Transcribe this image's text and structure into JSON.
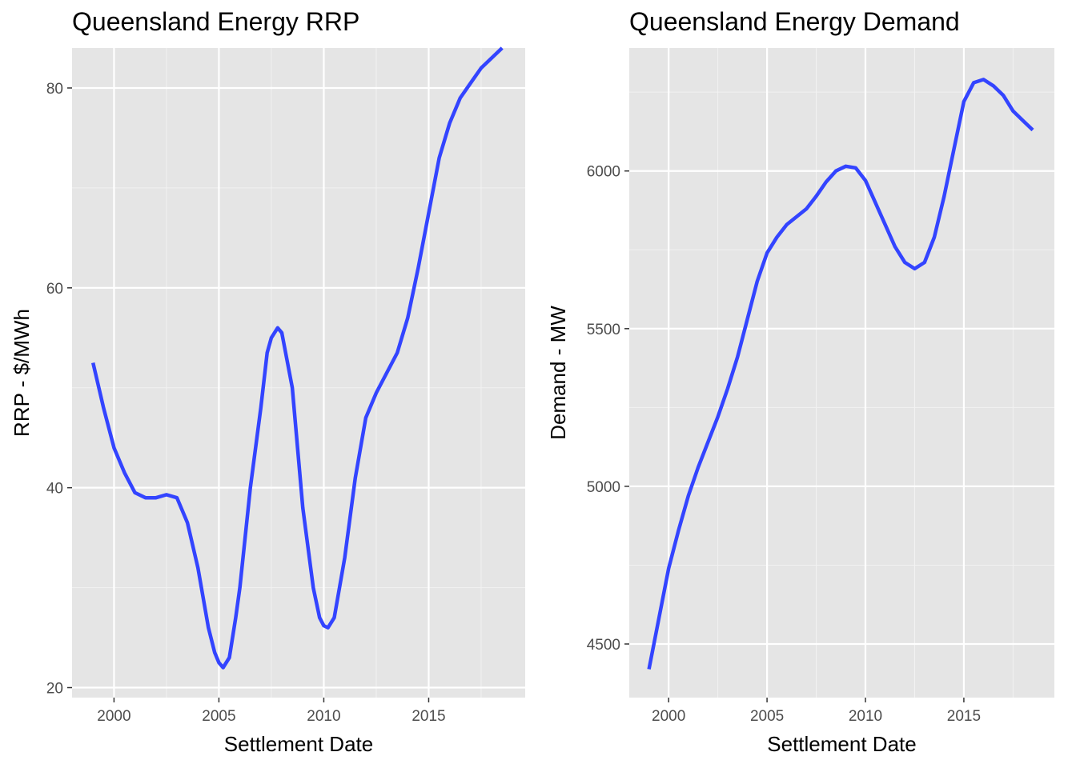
{
  "chart_data": [
    {
      "type": "line",
      "title": "Queensland Energy RRP",
      "xlabel": "Settlement Date",
      "ylabel": "RRP - $/MWh",
      "xlim": [
        1998.0,
        2019.6
      ],
      "ylim": [
        19.0,
        84.0
      ],
      "x_ticks": [
        2000,
        2005,
        2010,
        2015
      ],
      "y_ticks": [
        20,
        40,
        60,
        80
      ],
      "grid": true,
      "line_color": "#3344ff",
      "panel_background": "#e5e5e5",
      "series": [
        {
          "x": [
            1999.0,
            1999.5,
            2000.0,
            2000.5,
            2001.0,
            2001.5,
            2002.0,
            2002.5,
            2003.0,
            2003.5,
            2004.0,
            2004.5,
            2004.8,
            2005.0,
            2005.2,
            2005.5,
            2005.8,
            2006.0,
            2006.5,
            2007.0,
            2007.3,
            2007.5,
            2007.8,
            2008.0,
            2008.5,
            2009.0,
            2009.5,
            2009.8,
            2010.0,
            2010.2,
            2010.5,
            2011.0,
            2011.5,
            2012.0,
            2012.5,
            2013.0,
            2013.5,
            2014.0,
            2014.5,
            2015.0,
            2015.5,
            2016.0,
            2016.5,
            2017.0,
            2017.5,
            2018.0,
            2018.5
          ],
          "y": [
            52.5,
            48.0,
            44.0,
            41.5,
            39.5,
            39.0,
            39.0,
            39.3,
            39.0,
            36.5,
            32.0,
            26.0,
            23.5,
            22.5,
            22.0,
            23.0,
            27.0,
            30.0,
            40.0,
            48.0,
            53.5,
            55.0,
            56.0,
            55.5,
            50.0,
            38.0,
            30.0,
            27.0,
            26.2,
            26.0,
            27.0,
            33.0,
            41.0,
            47.0,
            49.5,
            51.5,
            53.5,
            57.0,
            62.0,
            67.5,
            73.0,
            76.5,
            79.0,
            80.5,
            82.0,
            83.0,
            84.0
          ]
        }
      ]
    },
    {
      "type": "line",
      "title": "Queensland Energy Demand",
      "xlabel": "Settlement Date",
      "ylabel": "Demand - MW",
      "xlim": [
        1998.0,
        2019.6
      ],
      "ylim": [
        4330,
        6390
      ],
      "x_ticks": [
        2000,
        2005,
        2010,
        2015
      ],
      "y_ticks": [
        4500,
        5000,
        5500,
        6000
      ],
      "grid": true,
      "line_color": "#3344ff",
      "panel_background": "#e5e5e5",
      "series": [
        {
          "x": [
            1999.0,
            1999.5,
            2000.0,
            2000.5,
            2001.0,
            2001.5,
            2002.0,
            2002.5,
            2003.0,
            2003.5,
            2004.0,
            2004.5,
            2005.0,
            2005.5,
            2006.0,
            2006.5,
            2007.0,
            2007.5,
            2008.0,
            2008.5,
            2009.0,
            2009.5,
            2010.0,
            2010.5,
            2011.0,
            2011.5,
            2012.0,
            2012.5,
            2013.0,
            2013.5,
            2014.0,
            2014.5,
            2015.0,
            2015.5,
            2016.0,
            2016.5,
            2017.0,
            2017.5,
            2018.0,
            2018.5
          ],
          "y": [
            4420,
            4580,
            4740,
            4860,
            4970,
            5060,
            5140,
            5220,
            5310,
            5410,
            5530,
            5650,
            5740,
            5790,
            5830,
            5855,
            5880,
            5920,
            5965,
            6000,
            6015,
            6010,
            5970,
            5900,
            5830,
            5760,
            5710,
            5690,
            5710,
            5790,
            5920,
            6070,
            6220,
            6280,
            6290,
            6270,
            6240,
            6190,
            6160,
            6130
          ]
        }
      ]
    }
  ]
}
